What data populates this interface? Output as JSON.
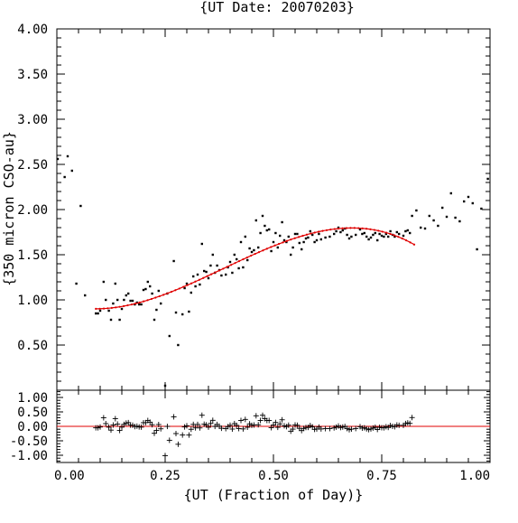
{
  "chart_data": {
    "type": "scatter",
    "title": "{UT Date: 20070203}",
    "xlabel": "{UT (Fraction of Day)}",
    "ylabel": "{350 micron CSO-au}",
    "xlim": [
      0.0,
      1.0
    ],
    "ylim": [
      0.0,
      4.0
    ],
    "resid_ylim": [
      -1.25,
      1.25
    ],
    "x_ticks": [
      "0.00",
      "0.25",
      "0.50",
      "0.75",
      "1.00"
    ],
    "x_tick_values": [
      0.0,
      0.25,
      0.5,
      0.75,
      1.0
    ],
    "y_ticks": [
      "0.50",
      "1.00",
      "1.50",
      "2.00",
      "2.50",
      "3.00",
      "3.50",
      "4.00"
    ],
    "y_tick_values": [
      0.5,
      1.0,
      1.5,
      2.0,
      2.5,
      3.0,
      3.5,
      4.0
    ],
    "resid_ticks": [
      "1.00",
      "0.50",
      "0.00",
      "-0.50",
      "-1.00"
    ],
    "resid_tick_values": [
      1.0,
      0.5,
      0.0,
      -0.5,
      -1.0
    ],
    "grid": false,
    "colors": {
      "data": "#000000",
      "fit": "#e00000",
      "zero_line": "#e00000"
    },
    "fit_poly": [
      0.0,
      0.0,
      0.0,
      0.0
    ],
    "fit_x_range": [
      0.09,
      0.825
    ],
    "series": [
      {
        "role": "measurements",
        "x": [
          0.002,
          0.018,
          0.025,
          0.035,
          0.045,
          0.055,
          0.065,
          0.09,
          0.095,
          0.1,
          0.108,
          0.113,
          0.12,
          0.125,
          0.13,
          0.135,
          0.14,
          0.145,
          0.15,
          0.155,
          0.16,
          0.165,
          0.17,
          0.175,
          0.18,
          0.185,
          0.19,
          0.195,
          0.2,
          0.205,
          0.21,
          0.215,
          0.22,
          0.225,
          0.23,
          0.235,
          0.24,
          0.25,
          0.255,
          0.26,
          0.27,
          0.275,
          0.28,
          0.29,
          0.295,
          0.3,
          0.305,
          0.31,
          0.315,
          0.32,
          0.325,
          0.33,
          0.335,
          0.34,
          0.345,
          0.35,
          0.355,
          0.36,
          0.365,
          0.37,
          0.375,
          0.38,
          0.39,
          0.395,
          0.4,
          0.405,
          0.41,
          0.415,
          0.42,
          0.425,
          0.43,
          0.435,
          0.44,
          0.445,
          0.45,
          0.455,
          0.46,
          0.465,
          0.47,
          0.475,
          0.48,
          0.485,
          0.49,
          0.495,
          0.5,
          0.505,
          0.51,
          0.515,
          0.52,
          0.525,
          0.53,
          0.535,
          0.54,
          0.545,
          0.55,
          0.555,
          0.56,
          0.565,
          0.57,
          0.575,
          0.58,
          0.585,
          0.59,
          0.595,
          0.6,
          0.605,
          0.61,
          0.62,
          0.63,
          0.64,
          0.645,
          0.65,
          0.655,
          0.66,
          0.665,
          0.67,
          0.675,
          0.68,
          0.69,
          0.7,
          0.705,
          0.71,
          0.715,
          0.72,
          0.725,
          0.73,
          0.735,
          0.74,
          0.745,
          0.75,
          0.755,
          0.76,
          0.765,
          0.77,
          0.775,
          0.78,
          0.785,
          0.79,
          0.8,
          0.805,
          0.81,
          0.815,
          0.82,
          0.83,
          0.84,
          0.85,
          0.86,
          0.87,
          0.88,
          0.89,
          0.9,
          0.91,
          0.92,
          0.93,
          0.94,
          0.95,
          0.96,
          0.97,
          0.98,
          0.995
        ],
        "y": [
          2.56,
          2.36,
          2.59,
          2.43,
          1.18,
          2.04,
          1.05,
          0.85,
          0.85,
          0.88,
          1.2,
          1.0,
          0.88,
          0.78,
          0.96,
          1.18,
          1.0,
          0.78,
          0.9,
          1.0,
          1.05,
          1.07,
          0.99,
          0.99,
          0.95,
          0.97,
          0.95,
          0.95,
          1.11,
          1.12,
          1.2,
          1.15,
          1.07,
          0.78,
          0.89,
          1.1,
          0.96,
          0.05,
          1.07,
          0.6,
          1.43,
          0.86,
          0.5,
          0.84,
          1.13,
          1.18,
          0.87,
          1.08,
          1.26,
          1.15,
          1.28,
          1.17,
          1.62,
          1.32,
          1.31,
          1.24,
          1.38,
          1.5,
          1.3,
          1.38,
          1.33,
          1.27,
          1.28,
          1.36,
          1.42,
          1.3,
          1.5,
          1.45,
          1.35,
          1.64,
          1.36,
          1.7,
          1.44,
          1.57,
          1.53,
          1.55,
          1.88,
          1.58,
          1.74,
          1.93,
          1.82,
          1.77,
          1.78,
          1.54,
          1.64,
          1.74,
          1.58,
          1.71,
          1.86,
          1.66,
          1.64,
          1.7,
          1.5,
          1.58,
          1.73,
          1.73,
          1.63,
          1.56,
          1.64,
          1.68,
          1.69,
          1.76,
          1.72,
          1.64,
          1.66,
          1.73,
          1.67,
          1.69,
          1.7,
          1.73,
          1.76,
          1.8,
          1.75,
          1.77,
          1.79,
          1.72,
          1.68,
          1.7,
          1.72,
          1.78,
          1.73,
          1.74,
          1.7,
          1.67,
          1.69,
          1.72,
          1.74,
          1.66,
          1.73,
          1.71,
          1.7,
          1.73,
          1.7,
          1.76,
          1.72,
          1.7,
          1.75,
          1.73,
          1.71,
          1.76,
          1.77,
          1.74,
          1.93,
          1.99,
          1.8,
          1.79,
          1.93,
          1.88,
          1.82,
          2.02,
          1.92,
          2.18,
          1.91,
          1.87,
          2.09,
          2.14,
          2.07,
          1.56,
          2.01,
          2.34
        ],
        "resid": []
      }
    ]
  }
}
